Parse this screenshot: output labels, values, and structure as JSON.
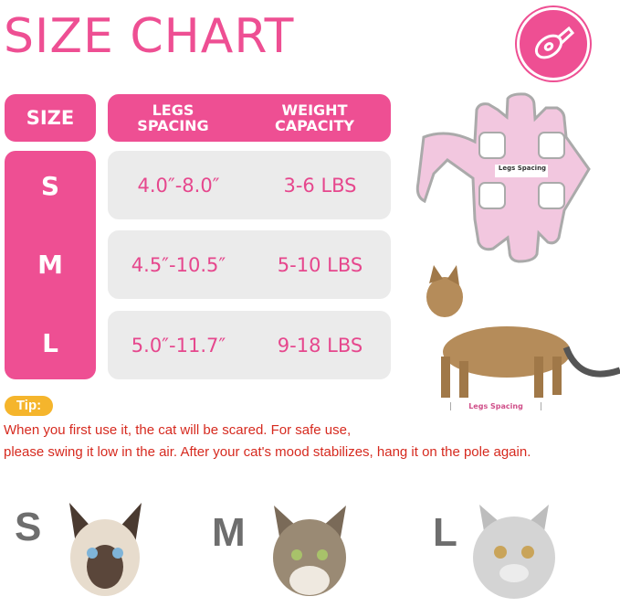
{
  "title": "SIZE CHART",
  "icon": "measuring-tape-icon",
  "colors": {
    "accent": "#ee4f93",
    "row_bg": "#ebebeb",
    "tip_badge": "#f5b52c",
    "tip_text": "#d62a1f"
  },
  "table": {
    "headers": {
      "size": "SIZE",
      "legs_spacing": "LEGS SPACING",
      "weight_capacity": "WEIGHT CAPACITY"
    },
    "rows": [
      {
        "size": "S",
        "legs_spacing": "4.0″-8.0″",
        "weight": "3-6 LBS"
      },
      {
        "size": "M",
        "legs_spacing": "4.5″-10.5″",
        "weight": "5-10 LBS"
      },
      {
        "size": "L",
        "legs_spacing": "5.0″-11.7″",
        "weight": "9-18 LBS"
      }
    ]
  },
  "diagram": {
    "garment_label": "Legs Spacing",
    "cat_label": "Legs Spacing"
  },
  "tip": {
    "label": "Tip:",
    "lines": [
      "When you first use it, the cat will be scared. For safe use,",
      "please swing it low in the air. After your cat's mood stabilizes, hang it on the pole again."
    ]
  },
  "sizes": [
    {
      "letter": "S"
    },
    {
      "letter": "M"
    },
    {
      "letter": "L"
    }
  ]
}
